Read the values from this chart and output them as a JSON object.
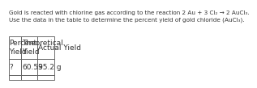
{
  "title_line1": "Gold is reacted with chlorine gas according to the reaction 2 Au + 3 Cl₂ → 2 AuCl₃.",
  "title_line2": "Use the data in the table to determine the percent yield of gold chloride (AuCl₃).",
  "col_headers": [
    "Percent\nYield",
    "Theoretical\nYield",
    "Actual Yield"
  ],
  "row1": [
    "?",
    "60.59",
    "35.2 g"
  ],
  "row2": [
    "",
    "",
    ""
  ],
  "bg_color": "#ffffff",
  "title_fontsize": 5.2,
  "table_fontsize": 6.5,
  "text_color": "#333333"
}
